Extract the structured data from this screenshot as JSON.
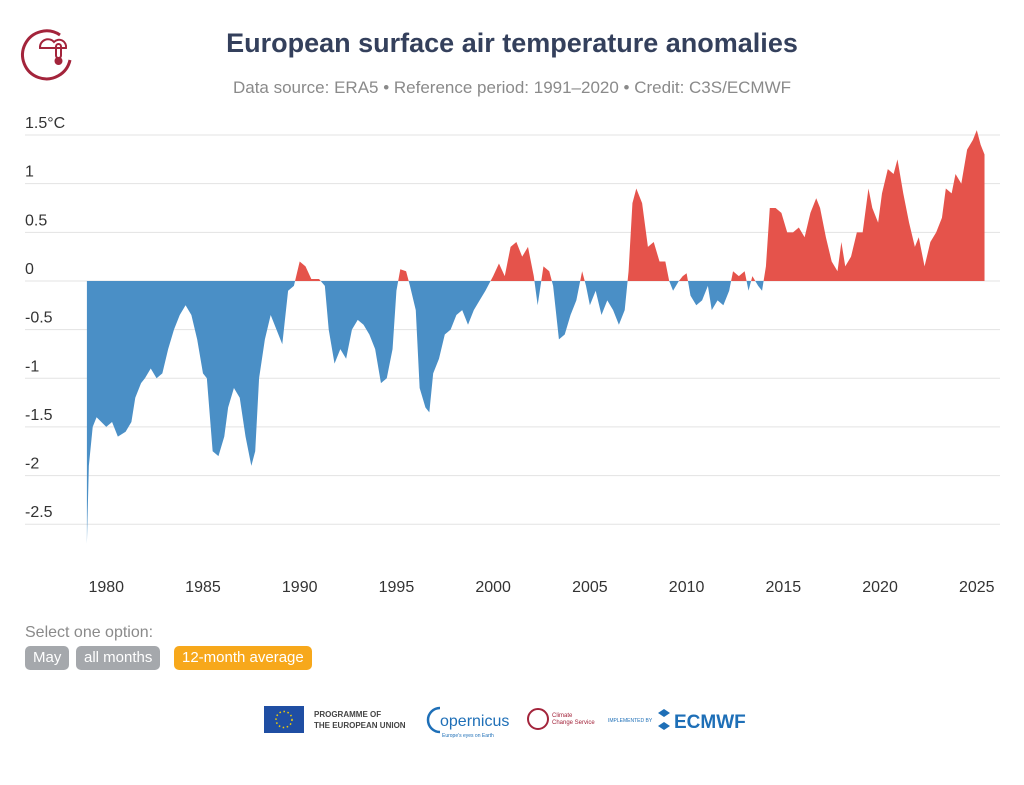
{
  "chart_data": {
    "type": "area",
    "title": "European surface air temperature anomalies",
    "subtitle": "Data source: ERA5 • Reference period: 1991–2020 • Credit: C3S/ECMWF",
    "positive_color": "#e5534b",
    "negative_color": "#4a8fc6",
    "grid": true,
    "xlim": [
      1975.8,
      2026.2
    ],
    "xticks": [
      1980,
      1985,
      1990,
      1995,
      2000,
      2005,
      2010,
      2015,
      2020,
      2025
    ],
    "ylim": [
      -2.8,
      1.6
    ],
    "yticks": [
      {
        "value": 1.5,
        "label": "1.5°C"
      },
      1,
      0.5,
      0,
      -0.5,
      -1,
      -1.5,
      -2,
      -2.5
    ],
    "x": [
      1979.0,
      1979.1,
      1979.3,
      1979.5,
      1980.0,
      1980.3,
      1980.6,
      1981.0,
      1981.3,
      1981.5,
      1981.8,
      1982.0,
      1982.3,
      1982.6,
      1982.9,
      1983.2,
      1983.5,
      1983.8,
      1984.1,
      1984.4,
      1984.7,
      1985.0,
      1985.2,
      1985.5,
      1985.8,
      1986.1,
      1986.3,
      1986.6,
      1986.9,
      1987.2,
      1987.5,
      1987.7,
      1987.9,
      1988.2,
      1988.5,
      1988.8,
      1989.1,
      1989.4,
      1989.7,
      1990.0,
      1990.3,
      1990.6,
      1991.0,
      1991.3,
      1991.5,
      1991.8,
      1992.1,
      1992.4,
      1992.7,
      1993.0,
      1993.3,
      1993.6,
      1993.9,
      1994.2,
      1994.5,
      1994.8,
      1995.0,
      1995.2,
      1995.5,
      1995.7,
      1996.0,
      1996.2,
      1996.5,
      1996.7,
      1996.9,
      1997.2,
      1997.5,
      1997.8,
      1998.1,
      1998.4,
      1998.7,
      1999.0,
      1999.3,
      1999.6,
      2000.0,
      2000.3,
      2000.6,
      2000.9,
      2001.2,
      2001.5,
      2001.8,
      2002.1,
      2002.3,
      2002.6,
      2002.9,
      2003.1,
      2003.4,
      2003.7,
      2004.0,
      2004.3,
      2004.6,
      2004.8,
      2005.0,
      2005.3,
      2005.6,
      2005.9,
      2006.2,
      2006.5,
      2006.8,
      2007.0,
      2007.2,
      2007.4,
      2007.7,
      2008.0,
      2008.3,
      2008.6,
      2008.9,
      2009.1,
      2009.3,
      2009.6,
      2009.8,
      2010.0,
      2010.2,
      2010.5,
      2010.8,
      2011.1,
      2011.3,
      2011.6,
      2011.9,
      2012.2,
      2012.4,
      2012.7,
      2013.0,
      2013.2,
      2013.4,
      2013.7,
      2013.9,
      2014.1,
      2014.3,
      2014.6,
      2014.9,
      2015.2,
      2015.5,
      2015.8,
      2016.1,
      2016.4,
      2016.7,
      2016.9,
      2017.2,
      2017.5,
      2017.8,
      2018.0,
      2018.2,
      2018.5,
      2018.8,
      2019.1,
      2019.4,
      2019.6,
      2019.9,
      2020.1,
      2020.4,
      2020.7,
      2020.9,
      2021.2,
      2021.5,
      2021.8,
      2022.0,
      2022.3,
      2022.6,
      2022.9,
      2023.2,
      2023.4,
      2023.7,
      2023.9,
      2024.2,
      2024.5,
      2024.8,
      2025.0,
      2025.2,
      2025.4
    ],
    "values": [
      -2.7,
      -1.9,
      -1.5,
      -1.4,
      -1.5,
      -1.45,
      -1.6,
      -1.55,
      -1.45,
      -1.2,
      -1.05,
      -1.0,
      -0.9,
      -1.0,
      -0.95,
      -0.7,
      -0.5,
      -0.35,
      -0.25,
      -0.35,
      -0.6,
      -0.95,
      -1.0,
      -1.75,
      -1.8,
      -1.6,
      -1.3,
      -1.1,
      -1.2,
      -1.6,
      -1.9,
      -1.75,
      -1.0,
      -0.6,
      -0.35,
      -0.5,
      -0.65,
      -0.1,
      -0.05,
      0.2,
      0.15,
      0.02,
      0.02,
      -0.05,
      -0.5,
      -0.85,
      -0.7,
      -0.8,
      -0.5,
      -0.4,
      -0.45,
      -0.55,
      -0.7,
      -1.05,
      -1.0,
      -0.7,
      -0.1,
      0.12,
      0.1,
      -0.05,
      -0.3,
      -1.1,
      -1.3,
      -1.35,
      -0.95,
      -0.8,
      -0.55,
      -0.5,
      -0.35,
      -0.3,
      -0.45,
      -0.3,
      -0.2,
      -0.1,
      0.05,
      0.18,
      0.05,
      0.35,
      0.4,
      0.25,
      0.35,
      0.05,
      -0.25,
      0.15,
      0.1,
      -0.05,
      -0.6,
      -0.55,
      -0.35,
      -0.2,
      0.1,
      -0.05,
      -0.25,
      -0.1,
      -0.35,
      -0.2,
      -0.3,
      -0.45,
      -0.3,
      0.1,
      0.8,
      0.95,
      0.8,
      0.35,
      0.4,
      0.2,
      0.2,
      0.0,
      -0.1,
      0.0,
      0.05,
      0.08,
      -0.15,
      -0.25,
      -0.2,
      -0.05,
      -0.3,
      -0.2,
      -0.25,
      -0.1,
      0.1,
      0.05,
      0.1,
      -0.1,
      0.05,
      -0.05,
      -0.1,
      0.15,
      0.75,
      0.75,
      0.7,
      0.5,
      0.5,
      0.55,
      0.45,
      0.7,
      0.85,
      0.75,
      0.45,
      0.2,
      0.1,
      0.4,
      0.15,
      0.25,
      0.5,
      0.5,
      0.95,
      0.75,
      0.6,
      0.9,
      1.15,
      1.1,
      1.25,
      0.9,
      0.6,
      0.35,
      0.45,
      0.15,
      0.4,
      0.5,
      0.65,
      0.95,
      0.9,
      1.1,
      1.0,
      1.35,
      1.45,
      1.55,
      1.4,
      1.3
    ]
  },
  "controls": {
    "prompt": "Select one option:",
    "options": [
      "May",
      "all months",
      "12-month average"
    ],
    "selected": 2
  },
  "footer": {
    "eu": "PROGRAMME OF\nTHE EUROPEAN UNION",
    "copernicus": "opernicus",
    "copernicus_tagline": "Europe's eyes on Earth",
    "c3s": "Climate\nChange Service",
    "implemented": "IMPLEMENTED BY",
    "ecmwf": "ECMWF"
  }
}
